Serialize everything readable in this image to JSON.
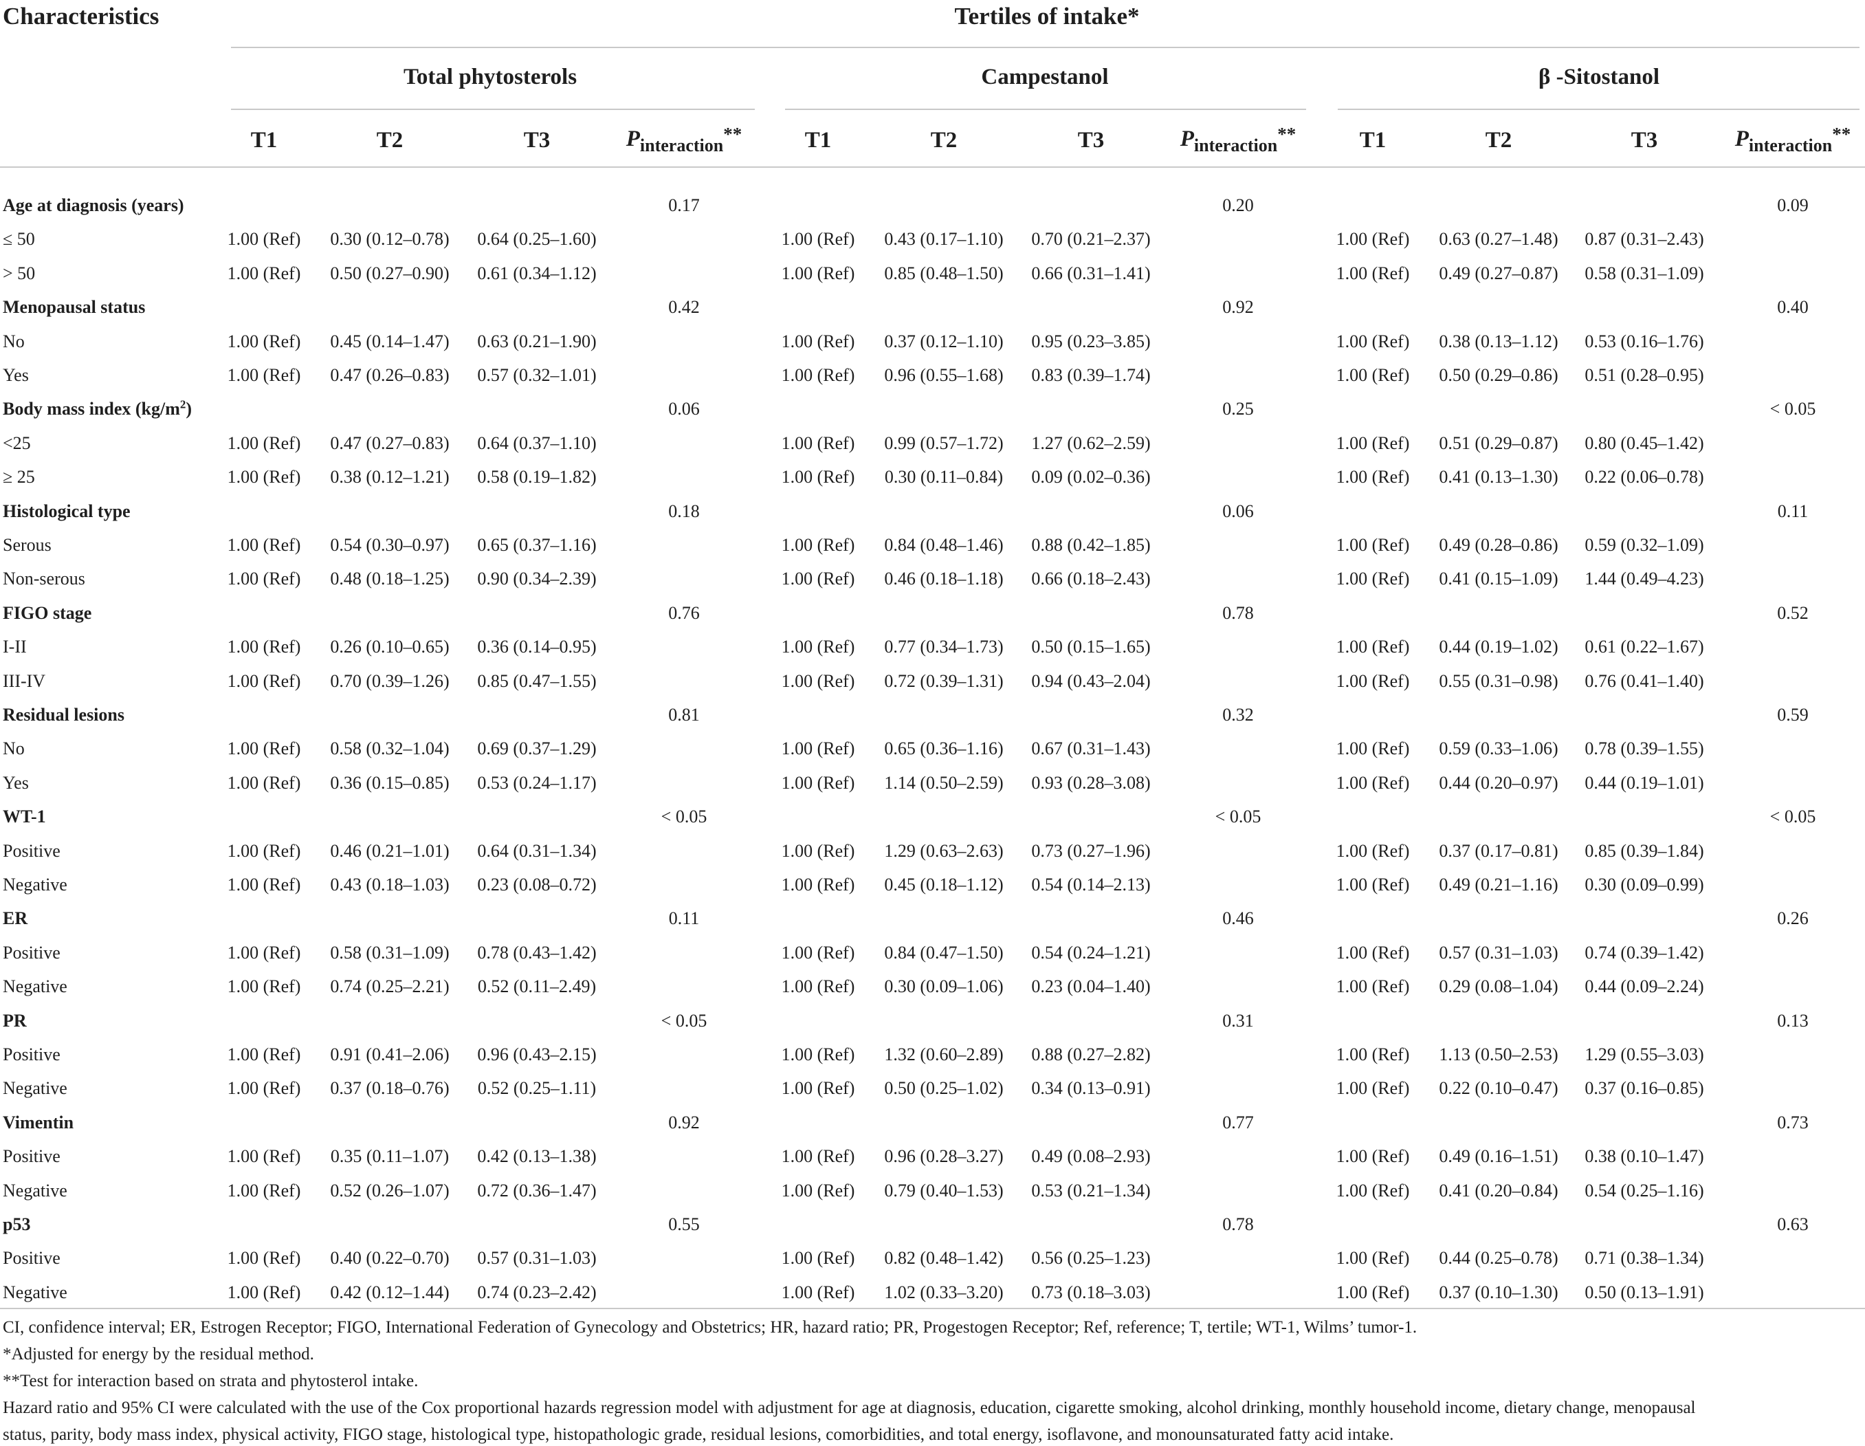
{
  "header": {
    "characteristics": "Characteristics",
    "tertiles_title": "Tertiles of intake*",
    "groups": [
      "Total phytosterols",
      "Campestanol",
      "β -Sitostanol"
    ],
    "columns": [
      "T1",
      "T2",
      "T3"
    ],
    "p_prefix": "P",
    "p_sub": "interaction",
    "p_stars": "**"
  },
  "rows": [
    {
      "label": "Age at diagnosis (years)",
      "section": true,
      "p": [
        "0.17",
        "0.20",
        "0.09"
      ]
    },
    {
      "label": "≤ 50",
      "v": [
        [
          "1.00 (Ref)",
          "0.30 (0.12–0.78)",
          "0.64 (0.25–1.60)"
        ],
        [
          "1.00 (Ref)",
          "0.43 (0.17–1.10)",
          "0.70 (0.21–2.37)"
        ],
        [
          "1.00 (Ref)",
          "0.63 (0.27–1.48)",
          "0.87 (0.31–2.43)"
        ]
      ]
    },
    {
      "label": "> 50",
      "v": [
        [
          "1.00 (Ref)",
          "0.50 (0.27–0.90)",
          "0.61 (0.34–1.12)"
        ],
        [
          "1.00 (Ref)",
          "0.85 (0.48–1.50)",
          "0.66 (0.31–1.41)"
        ],
        [
          "1.00 (Ref)",
          "0.49 (0.27–0.87)",
          "0.58 (0.31–1.09)"
        ]
      ]
    },
    {
      "label": "Menopausal status",
      "section": true,
      "p": [
        "0.42",
        "0.92",
        "0.40"
      ]
    },
    {
      "label": "No",
      "v": [
        [
          "1.00 (Ref)",
          "0.45 (0.14–1.47)",
          "0.63 (0.21–1.90)"
        ],
        [
          "1.00 (Ref)",
          "0.37 (0.12–1.10)",
          "0.95 (0.23–3.85)"
        ],
        [
          "1.00 (Ref)",
          "0.38 (0.13–1.12)",
          "0.53 (0.16–1.76)"
        ]
      ]
    },
    {
      "label": "Yes",
      "v": [
        [
          "1.00 (Ref)",
          "0.47 (0.26–0.83)",
          "0.57 (0.32–1.01)"
        ],
        [
          "1.00 (Ref)",
          "0.96 (0.55–1.68)",
          "0.83 (0.39–1.74)"
        ],
        [
          "1.00 (Ref)",
          "0.50 (0.29–0.86)",
          "0.51 (0.28–0.95)"
        ]
      ]
    },
    {
      "label": "Body mass index (kg/m",
      "label_sup": "2",
      "label_end": ")",
      "section": true,
      "p": [
        "0.06",
        "0.25",
        "< 0.05"
      ]
    },
    {
      "label": "<25",
      "v": [
        [
          "1.00 (Ref)",
          "0.47 (0.27–0.83)",
          "0.64 (0.37–1.10)"
        ],
        [
          "1.00 (Ref)",
          "0.99 (0.57–1.72)",
          "1.27 (0.62–2.59)"
        ],
        [
          "1.00 (Ref)",
          "0.51 (0.29–0.87)",
          "0.80 (0.45–1.42)"
        ]
      ]
    },
    {
      "label": "≥ 25",
      "v": [
        [
          "1.00 (Ref)",
          "0.38 (0.12–1.21)",
          "0.58 (0.19–1.82)"
        ],
        [
          "1.00 (Ref)",
          "0.30 (0.11–0.84)",
          "0.09 (0.02–0.36)"
        ],
        [
          "1.00 (Ref)",
          "0.41 (0.13–1.30)",
          "0.22 (0.06–0.78)"
        ]
      ]
    },
    {
      "label": "Histological type",
      "section": true,
      "p": [
        "0.18",
        "0.06",
        "0.11"
      ]
    },
    {
      "label": "Serous",
      "v": [
        [
          "1.00 (Ref)",
          "0.54 (0.30–0.97)",
          "0.65 (0.37–1.16)"
        ],
        [
          "1.00 (Ref)",
          "0.84 (0.48–1.46)",
          "0.88 (0.42–1.85)"
        ],
        [
          "1.00 (Ref)",
          "0.49 (0.28–0.86)",
          "0.59 (0.32–1.09)"
        ]
      ]
    },
    {
      "label": "Non-serous",
      "v": [
        [
          "1.00 (Ref)",
          "0.48 (0.18–1.25)",
          "0.90 (0.34–2.39)"
        ],
        [
          "1.00 (Ref)",
          "0.46 (0.18–1.18)",
          "0.66 (0.18–2.43)"
        ],
        [
          "1.00 (Ref)",
          "0.41 (0.15–1.09)",
          "1.44 (0.49–4.23)"
        ]
      ]
    },
    {
      "label": "FIGO stage",
      "section": true,
      "p": [
        "0.76",
        "0.78",
        "0.52"
      ]
    },
    {
      "label": "I-II",
      "v": [
        [
          "1.00 (Ref)",
          "0.26 (0.10–0.65)",
          "0.36 (0.14–0.95)"
        ],
        [
          "1.00 (Ref)",
          "0.77 (0.34–1.73)",
          "0.50 (0.15–1.65)"
        ],
        [
          "1.00 (Ref)",
          "0.44 (0.19–1.02)",
          "0.61 (0.22–1.67)"
        ]
      ]
    },
    {
      "label": "III-IV",
      "v": [
        [
          "1.00 (Ref)",
          "0.70 (0.39–1.26)",
          "0.85 (0.47–1.55)"
        ],
        [
          "1.00 (Ref)",
          "0.72 (0.39–1.31)",
          "0.94 (0.43–2.04)"
        ],
        [
          "1.00 (Ref)",
          "0.55 (0.31–0.98)",
          "0.76 (0.41–1.40)"
        ]
      ]
    },
    {
      "label": "Residual lesions",
      "section": true,
      "p": [
        "0.81",
        "0.32",
        "0.59"
      ]
    },
    {
      "label": "No",
      "v": [
        [
          "1.00 (Ref)",
          "0.58 (0.32–1.04)",
          "0.69 (0.37–1.29)"
        ],
        [
          "1.00 (Ref)",
          "0.65 (0.36–1.16)",
          "0.67 (0.31–1.43)"
        ],
        [
          "1.00 (Ref)",
          "0.59 (0.33–1.06)",
          "0.78 (0.39–1.55)"
        ]
      ]
    },
    {
      "label": "Yes",
      "v": [
        [
          "1.00 (Ref)",
          "0.36 (0.15–0.85)",
          "0.53 (0.24–1.17)"
        ],
        [
          "1.00 (Ref)",
          "1.14 (0.50–2.59)",
          "0.93 (0.28–3.08)"
        ],
        [
          "1.00 (Ref)",
          "0.44 (0.20–0.97)",
          "0.44 (0.19–1.01)"
        ]
      ]
    },
    {
      "label": "WT-1",
      "section": true,
      "p": [
        "< 0.05",
        "< 0.05",
        "< 0.05"
      ]
    },
    {
      "label": "Positive",
      "v": [
        [
          "1.00 (Ref)",
          "0.46 (0.21–1.01)",
          "0.64 (0.31–1.34)"
        ],
        [
          "1.00 (Ref)",
          "1.29 (0.63–2.63)",
          "0.73 (0.27–1.96)"
        ],
        [
          "1.00 (Ref)",
          "0.37 (0.17–0.81)",
          "0.85 (0.39–1.84)"
        ]
      ]
    },
    {
      "label": "Negative",
      "v": [
        [
          "1.00 (Ref)",
          "0.43 (0.18–1.03)",
          "0.23 (0.08–0.72)"
        ],
        [
          "1.00 (Ref)",
          "0.45 (0.18–1.12)",
          "0.54 (0.14–2.13)"
        ],
        [
          "1.00 (Ref)",
          "0.49 (0.21–1.16)",
          "0.30 (0.09–0.99)"
        ]
      ]
    },
    {
      "label": "ER",
      "section": true,
      "p": [
        "0.11",
        "0.46",
        "0.26"
      ]
    },
    {
      "label": "Positive",
      "v": [
        [
          "1.00 (Ref)",
          "0.58 (0.31–1.09)",
          "0.78 (0.43–1.42)"
        ],
        [
          "1.00 (Ref)",
          "0.84 (0.47–1.50)",
          "0.54 (0.24–1.21)"
        ],
        [
          "1.00 (Ref)",
          "0.57 (0.31–1.03)",
          "0.74 (0.39–1.42)"
        ]
      ]
    },
    {
      "label": "Negative",
      "v": [
        [
          "1.00 (Ref)",
          "0.74 (0.25–2.21)",
          "0.52 (0.11–2.49)"
        ],
        [
          "1.00 (Ref)",
          "0.30 (0.09–1.06)",
          "0.23 (0.04–1.40)"
        ],
        [
          "1.00 (Ref)",
          "0.29 (0.08–1.04)",
          "0.44 (0.09–2.24)"
        ]
      ]
    },
    {
      "label": "PR",
      "section": true,
      "p": [
        "< 0.05",
        "0.31",
        "0.13"
      ]
    },
    {
      "label": "Positive",
      "v": [
        [
          "1.00 (Ref)",
          "0.91 (0.41–2.06)",
          "0.96 (0.43–2.15)"
        ],
        [
          "1.00 (Ref)",
          "1.32 (0.60–2.89)",
          "0.88 (0.27–2.82)"
        ],
        [
          "1.00 (Ref)",
          "1.13 (0.50–2.53)",
          "1.29 (0.55–3.03)"
        ]
      ]
    },
    {
      "label": "Negative",
      "v": [
        [
          "1.00 (Ref)",
          "0.37 (0.18–0.76)",
          "0.52 (0.25–1.11)"
        ],
        [
          "1.00 (Ref)",
          "0.50 (0.25–1.02)",
          "0.34 (0.13–0.91)"
        ],
        [
          "1.00 (Ref)",
          "0.22 (0.10–0.47)",
          "0.37 (0.16–0.85)"
        ]
      ]
    },
    {
      "label": "Vimentin",
      "section": true,
      "p": [
        "0.92",
        "0.77",
        "0.73"
      ]
    },
    {
      "label": "Positive",
      "v": [
        [
          "1.00 (Ref)",
          "0.35 (0.11–1.07)",
          "0.42 (0.13–1.38)"
        ],
        [
          "1.00 (Ref)",
          "0.96 (0.28–3.27)",
          "0.49 (0.08–2.93)"
        ],
        [
          "1.00 (Ref)",
          "0.49 (0.16–1.51)",
          "0.38 (0.10–1.47)"
        ]
      ]
    },
    {
      "label": "Negative",
      "v": [
        [
          "1.00 (Ref)",
          "0.52 (0.26–1.07)",
          "0.72 (0.36–1.47)"
        ],
        [
          "1.00 (Ref)",
          "0.79 (0.40–1.53)",
          "0.53 (0.21–1.34)"
        ],
        [
          "1.00 (Ref)",
          "0.41 (0.20–0.84)",
          "0.54 (0.25–1.16)"
        ]
      ]
    },
    {
      "label": "p53",
      "section": true,
      "p": [
        "0.55",
        "0.78",
        "0.63"
      ]
    },
    {
      "label": "Positive",
      "v": [
        [
          "1.00 (Ref)",
          "0.40 (0.22–0.70)",
          "0.57 (0.31–1.03)"
        ],
        [
          "1.00 (Ref)",
          "0.82 (0.48–1.42)",
          "0.56 (0.25–1.23)"
        ],
        [
          "1.00 (Ref)",
          "0.44 (0.25–0.78)",
          "0.71 (0.38–1.34)"
        ]
      ]
    },
    {
      "label": "Negative",
      "v": [
        [
          "1.00 (Ref)",
          "0.42 (0.12–1.44)",
          "0.74 (0.23–2.42)"
        ],
        [
          "1.00 (Ref)",
          "1.02 (0.33–3.20)",
          "0.73 (0.18–3.03)"
        ],
        [
          "1.00 (Ref)",
          "0.37 (0.10–1.30)",
          "0.50 (0.13–1.91)"
        ]
      ]
    }
  ],
  "footnotes": [
    "CI, confidence interval; ER, Estrogen Receptor; FIGO, International Federation of Gynecology and Obstetrics; HR, hazard ratio; PR, Progestogen Receptor; Ref, reference; T, tertile; WT-1, Wilms’ tumor-1.",
    "*Adjusted for energy by the residual method.",
    "**Test for interaction based on strata and phytosterol intake.",
    "Hazard ratio and 95% CI were calculated with the use of the Cox proportional hazards regression model with adjustment for age at diagnosis, education, cigarette smoking, alcohol drinking, monthly household income, dietary change, menopausal",
    "status, parity, body mass index, physical activity, FIGO stage, histological type, histopathologic grade, residual lesions, comorbidities, and total energy, isoflavone, and monounsaturated fatty acid intake."
  ]
}
